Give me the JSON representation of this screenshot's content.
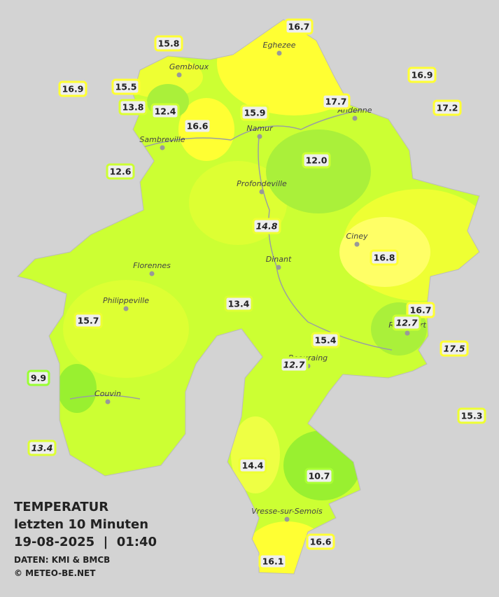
{
  "header": {
    "title": "TEMPERATUR",
    "period": "letzten 10 Minuten",
    "timestamp": "19-08-2025  |  01:40",
    "source": "DATEN: KMI & BMCB",
    "copyright": "© METEO-BE.NET"
  },
  "places": [
    "Eghezee",
    "Gembloux",
    "Andenne",
    "Namur",
    "Sambreville",
    "Profondeville",
    "Ciney",
    "Dinant",
    "Florennes",
    "Philippeville",
    "Rochefort",
    "Beauraing",
    "Couvin",
    "Vresse-sur-Semois"
  ],
  "stations": [
    {
      "value": "16.7",
      "color": "#ffff33"
    },
    {
      "value": "15.8",
      "color": "#ffff33"
    },
    {
      "value": "16.9",
      "color": "#ffff33"
    },
    {
      "value": "16.9",
      "color": "#ffff33"
    },
    {
      "value": "15.5",
      "color": "#ffff33"
    },
    {
      "value": "17.7",
      "color": "#ffff33"
    },
    {
      "value": "17.2",
      "color": "#ffff33"
    },
    {
      "value": "13.8",
      "color": "#ddff33"
    },
    {
      "value": "12.4",
      "color": "#ccff33"
    },
    {
      "value": "15.9",
      "color": "#eeff33"
    },
    {
      "value": "16.6",
      "color": "#ffff33"
    },
    {
      "value": "12.0",
      "color": "#ccff33"
    },
    {
      "value": "12.6",
      "color": "#ccff33"
    },
    {
      "value": "14.8",
      "color": "#eeff33",
      "italic": true
    },
    {
      "value": "16.8",
      "color": "#ffff33"
    },
    {
      "value": "13.4",
      "color": "#ddff33"
    },
    {
      "value": "16.7",
      "color": "#ffff33"
    },
    {
      "value": "12.7",
      "color": "#ccff33",
      "italic": true
    },
    {
      "value": "15.7",
      "color": "#eeff33"
    },
    {
      "value": "15.4",
      "color": "#eeff33"
    },
    {
      "value": "17.5",
      "color": "#ffff33",
      "italic": true
    },
    {
      "value": "12.7",
      "color": "#ccff33",
      "italic": true
    },
    {
      "value": "9.9",
      "color": "#99ff33"
    },
    {
      "value": "15.3",
      "color": "#eeff33"
    },
    {
      "value": "13.4",
      "color": "#ddff33",
      "italic": true
    },
    {
      "value": "14.4",
      "color": "#eeff33"
    },
    {
      "value": "10.7",
      "color": "#aaff33"
    },
    {
      "value": "16.6",
      "color": "#ffff33"
    },
    {
      "value": "16.1",
      "color": "#ffff33"
    }
  ]
}
